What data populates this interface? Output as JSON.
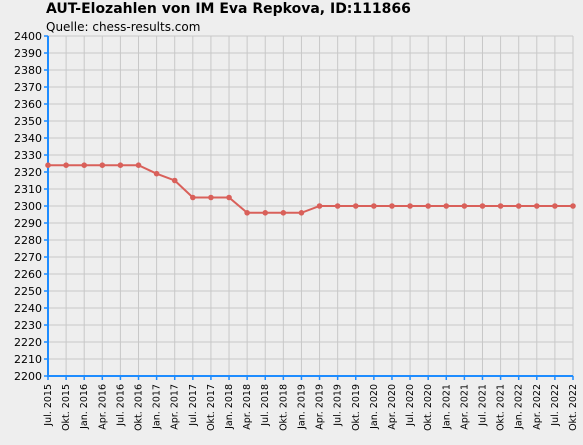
{
  "chart_data": {
    "type": "line",
    "title": "AUT-Elozahlen von IM Eva Repkova, ID:111866",
    "subtitle": "Quelle: chess-results.com",
    "xlabel": "",
    "ylabel": "",
    "ylim": [
      2200,
      2400
    ],
    "yticks": [
      2200,
      2210,
      2220,
      2230,
      2240,
      2250,
      2260,
      2270,
      2280,
      2290,
      2300,
      2310,
      2320,
      2330,
      2340,
      2350,
      2360,
      2370,
      2380,
      2390,
      2400
    ],
    "grid": true,
    "colors": {
      "line": "#d9605a",
      "grid": "#c8c8c8",
      "axis": "#1e8cff"
    },
    "categories": [
      "Jul. 2015",
      "Okt. 2015",
      "Jan. 2016",
      "Apr. 2016",
      "Jul. 2016",
      "Okt. 2016",
      "Jan. 2017",
      "Apr. 2017",
      "Jul. 2017",
      "Okt. 2017",
      "Jan. 2018",
      "Apr. 2018",
      "Jul. 2018",
      "Okt. 2018",
      "Jan. 2019",
      "Apr. 2019",
      "Jul. 2019",
      "Okt. 2019",
      "Jan. 2020",
      "Apr. 2020",
      "Jul. 2020",
      "Okt. 2020",
      "Jan. 2021",
      "Apr. 2021",
      "Jul. 2021",
      "Okt. 2021",
      "Jan. 2022",
      "Apr. 2022",
      "Jul. 2022",
      "Okt. 2022"
    ],
    "series": [
      {
        "values": [
          2324,
          2324,
          2324,
          2324,
          2324,
          2324,
          2319,
          2315,
          2305,
          2305,
          2305,
          2296,
          2296,
          2296,
          2296,
          2300,
          2300,
          2300,
          2300,
          2300,
          2300,
          2300,
          2300,
          2300,
          2300,
          2300,
          2300,
          2300,
          2300,
          2300
        ]
      }
    ]
  }
}
